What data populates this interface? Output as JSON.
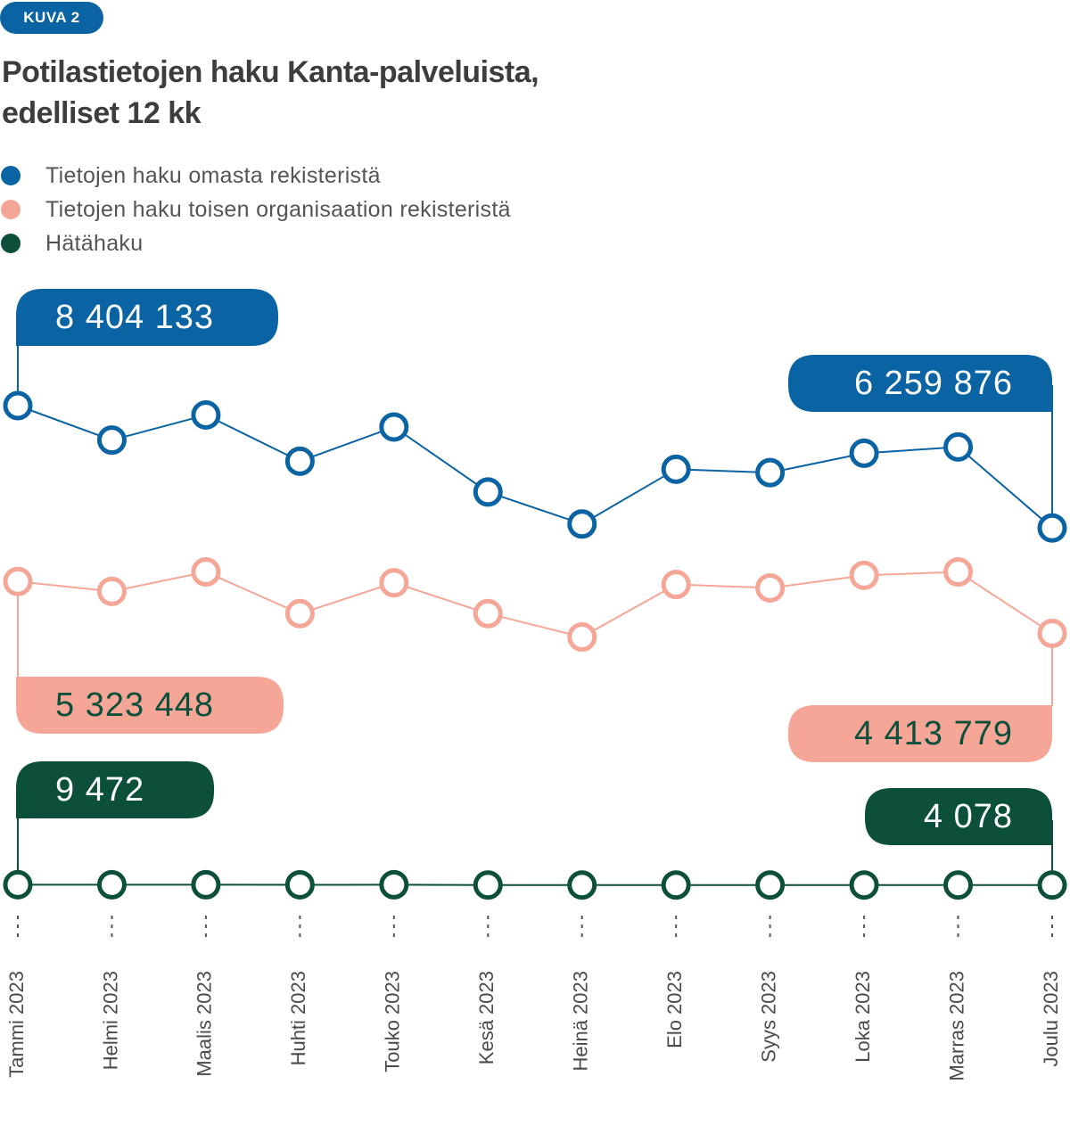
{
  "figure": {
    "badge": "KUVA 2"
  },
  "colors": {
    "blue": "#0a63a3",
    "pink": "#f6a697",
    "green": "#0c4f3a",
    "tick": "#555555"
  },
  "chart_data": {
    "type": "line",
    "title_line1": "Potilastietojen haku Kanta-palveluista,",
    "title_line2": "edelliset 12 kk",
    "categories": [
      "Tammi 2023",
      "Helmi 2023",
      "Maalis 2023",
      "Huhti 2023",
      "Touko 2023",
      "Kesä 2023",
      "Heinä 2023",
      "Elo 2023",
      "Syys 2023",
      "Loka 2023",
      "Marras 2023",
      "Joulu 2023"
    ],
    "ylim": [
      0,
      9300000
    ],
    "series": [
      {
        "name": "Tietojen haku omasta rekisteristä",
        "color_key": "blue",
        "values": [
          8404133,
          7800000,
          8240000,
          7430000,
          8030000,
          6890000,
          6330000,
          7290000,
          7230000,
          7570000,
          7680000,
          6259876
        ],
        "callouts": [
          {
            "index": 0,
            "label": "8 404 133",
            "position": "above"
          },
          {
            "index": 11,
            "label": "6 259 876",
            "position": "above"
          }
        ]
      },
      {
        "name": "Tietojen haku toisen organisaation rekisteristä",
        "color_key": "pink",
        "values": [
          5323448,
          5150000,
          5490000,
          4760000,
          5300000,
          4760000,
          4350000,
          5270000,
          5210000,
          5430000,
          5490000,
          4413779
        ],
        "callouts": [
          {
            "index": 0,
            "label": "5 323 448",
            "position": "below"
          },
          {
            "index": 11,
            "label": "4 413 779",
            "position": "below"
          }
        ]
      },
      {
        "name": "Hätähaku",
        "color_key": "green",
        "values": [
          9472,
          9100,
          9000,
          8700,
          8900,
          4300,
          4100,
          4300,
          4400,
          4300,
          4400,
          4078
        ],
        "callouts": [
          {
            "index": 0,
            "label": "9 472",
            "position": "above"
          },
          {
            "index": 11,
            "label": "4 078",
            "position": "above"
          }
        ]
      }
    ]
  }
}
